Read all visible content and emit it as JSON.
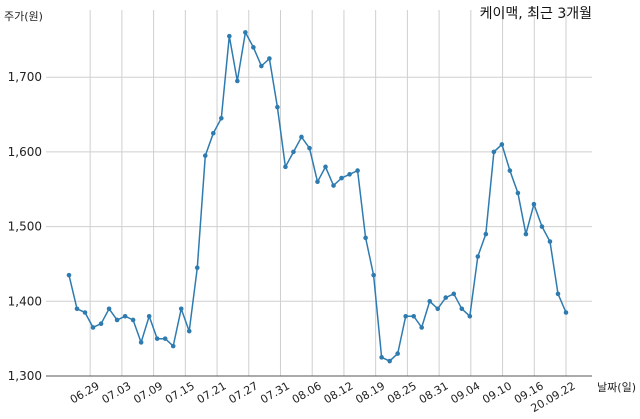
{
  "chart_data": {
    "type": "line",
    "title": "케이맥, 최근 3개월",
    "ylabel": "주가(원)",
    "xlabel": "날짜(일)",
    "ylim": [
      1300,
      1790
    ],
    "yticks": [
      1300,
      1400,
      1500,
      1600,
      1700
    ],
    "ytick_labels": [
      "1,300",
      "1,400",
      "1,500",
      "1,600",
      "1,700"
    ],
    "xtick_labels": [
      "06.29",
      "07.03",
      "07.09",
      "07.15",
      "07.21",
      "07.27",
      "07.31",
      "08.06",
      "08.12",
      "08.19",
      "08.25",
      "08.31",
      "09.04",
      "09.10",
      "09.16",
      "20.09.22"
    ],
    "xtick_index": [
      2,
      5,
      8,
      11,
      14,
      17,
      20,
      23,
      26,
      29,
      32,
      35,
      38,
      41,
      44,
      47
    ],
    "grid": true,
    "series": [
      {
        "color": "#2e7bb0",
        "values": [
          1435,
          1390,
          1385,
          1365,
          1370,
          1390,
          1375,
          1380,
          1375,
          1345,
          1380,
          1350,
          1350,
          1340,
          1390,
          1360,
          1445,
          1595,
          1625,
          1645,
          1755,
          1695,
          1760,
          1740,
          1715,
          1725,
          1660,
          1580,
          1600,
          1620,
          1605,
          1560,
          1580,
          1555,
          1565,
          1570,
          1575,
          1485,
          1435,
          1325,
          1320,
          1330,
          1380,
          1380,
          1365,
          1400,
          1390,
          1405,
          1410,
          1390,
          1380,
          1460,
          1490,
          1600,
          1610,
          1575,
          1545,
          1490,
          1530,
          1500,
          1480,
          1410,
          1385
        ]
      }
    ]
  }
}
